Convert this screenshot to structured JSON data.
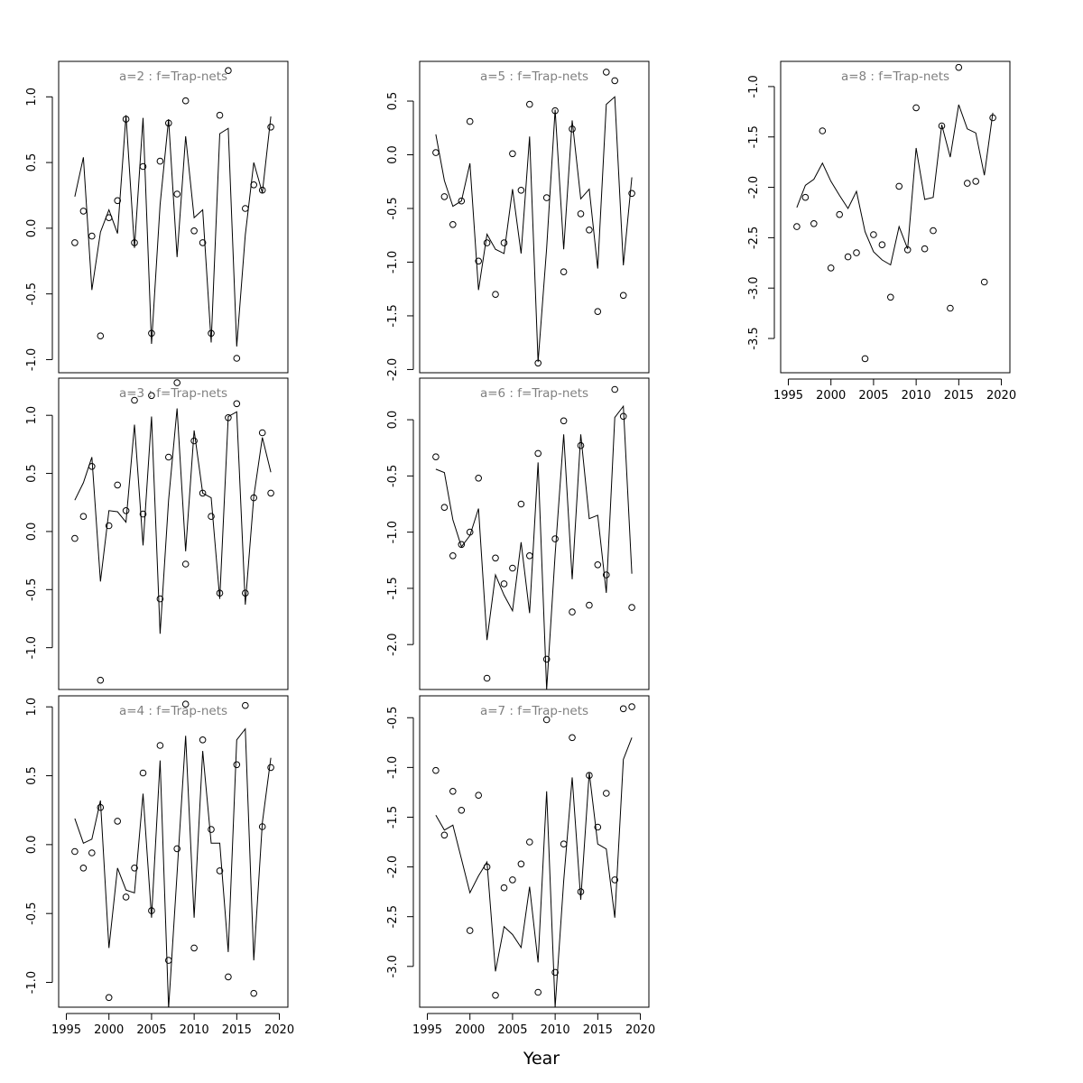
{
  "chart_data": {
    "type": "line",
    "xlabel": "Year",
    "line_color": "#000000",
    "title_color": "#808080",
    "x": [
      1996,
      1997,
      1998,
      1999,
      2000,
      2001,
      2002,
      2003,
      2004,
      2005,
      2006,
      2007,
      2008,
      2009,
      2010,
      2011,
      2012,
      2013,
      2014,
      2015,
      2016,
      2017,
      2018,
      2019
    ],
    "xlim": [
      1994.1,
      2021.0
    ],
    "xticks": [
      1995,
      2000,
      2005,
      2010,
      2015,
      2020
    ],
    "xtick_labels": [
      "1995",
      "2000",
      "2005",
      "2010",
      "2015",
      "2020"
    ],
    "panels": [
      {
        "title": "a=2  :  f=Trap-nets",
        "ylim": [
          -1.1,
          1.27
        ],
        "yticks": [
          -1.0,
          -0.5,
          0.0,
          0.5,
          1.0
        ],
        "ytick_labels": [
          "-1.0",
          "-0.5",
          "0.0",
          "0.5",
          "1.0"
        ],
        "show_x_axis": false,
        "observed": [
          -0.11,
          0.13,
          -0.06,
          -0.82,
          0.08,
          0.21,
          0.83,
          -0.11,
          0.47,
          -0.8,
          0.51,
          0.8,
          0.26,
          0.97,
          -0.02,
          -0.11,
          -0.8,
          0.86,
          1.2,
          -0.99,
          0.15,
          0.33,
          0.29,
          0.77
        ],
        "fitted": [
          0.24,
          0.54,
          -0.47,
          -0.03,
          0.14,
          -0.04,
          0.86,
          -0.15,
          0.84,
          -0.88,
          0.18,
          0.83,
          -0.22,
          0.7,
          0.08,
          0.14,
          -0.87,
          0.72,
          0.76,
          -0.9,
          -0.05,
          0.5,
          0.27,
          0.85
        ]
      },
      {
        "title": "a=3  :  f=Trap-nets",
        "ylim": [
          -1.36,
          1.32
        ],
        "yticks": [
          -1.0,
          -0.5,
          0.0,
          0.5,
          1.0
        ],
        "ytick_labels": [
          "-1.0",
          "-0.5",
          "0.0",
          "0.5",
          "1.0"
        ],
        "show_x_axis": false,
        "observed": [
          -0.06,
          0.13,
          0.56,
          -1.28,
          0.05,
          0.4,
          0.18,
          1.13,
          0.15,
          1.17,
          -0.58,
          0.64,
          1.28,
          -0.28,
          0.78,
          0.33,
          0.13,
          -0.53,
          0.98,
          1.1,
          -0.53,
          0.29,
          0.85,
          0.33
        ],
        "fitted": [
          0.27,
          0.42,
          0.64,
          -0.43,
          0.18,
          0.17,
          0.08,
          0.92,
          -0.12,
          0.99,
          -0.88,
          0.27,
          1.06,
          -0.17,
          0.87,
          0.33,
          0.29,
          -0.58,
          0.99,
          1.03,
          -0.63,
          0.3,
          0.81,
          0.51
        ]
      },
      {
        "title": "a=4  :  f=Trap-nets",
        "ylim": [
          -1.18,
          1.08
        ],
        "yticks": [
          -1.0,
          -0.5,
          0.0,
          0.5,
          1.0
        ],
        "ytick_labels": [
          "-1.0",
          "-0.5",
          "0.0",
          "0.5",
          "1.0"
        ],
        "show_x_axis": true,
        "observed": [
          -0.05,
          -0.17,
          -0.06,
          0.27,
          -1.11,
          0.17,
          -0.38,
          -0.17,
          0.52,
          -0.48,
          0.72,
          -0.84,
          -0.03,
          1.02,
          -0.75,
          0.76,
          0.11,
          -0.19,
          -0.96,
          0.58,
          1.01,
          -1.08,
          0.13,
          0.56
        ],
        "fitted": [
          0.19,
          0.01,
          0.04,
          0.32,
          -0.75,
          -0.17,
          -0.33,
          -0.35,
          0.37,
          -0.53,
          0.61,
          -1.19,
          -0.21,
          0.79,
          -0.53,
          0.68,
          0.01,
          0.01,
          -0.78,
          0.76,
          0.84,
          -0.84,
          0.16,
          0.63
        ]
      },
      {
        "title": "a=5  :  f=Trap-nets",
        "ylim": [
          -2.03,
          0.87
        ],
        "yticks": [
          -2.0,
          -1.5,
          -1.0,
          -0.5,
          0.0,
          0.5
        ],
        "ytick_labels": [
          "-2.0",
          "-1.5",
          "-1.0",
          "-0.5",
          "0.0",
          "0.5"
        ],
        "show_x_axis": false,
        "observed": [
          0.02,
          -0.39,
          -0.65,
          -0.43,
          0.31,
          -0.99,
          -0.82,
          -1.3,
          -0.82,
          0.01,
          -0.33,
          0.47,
          -1.94,
          -0.4,
          0.41,
          -1.09,
          0.24,
          -0.55,
          -0.7,
          -1.46,
          0.77,
          0.69,
          -1.31,
          -0.36
        ],
        "fitted": [
          0.19,
          -0.24,
          -0.48,
          -0.43,
          -0.08,
          -1.26,
          -0.74,
          -0.88,
          -0.92,
          -0.32,
          -0.92,
          0.17,
          -1.93,
          -0.87,
          0.42,
          -0.88,
          0.32,
          -0.41,
          -0.32,
          -1.06,
          0.47,
          0.54,
          -1.03,
          -0.21
        ]
      },
      {
        "title": "a=6  :  f=Trap-nets",
        "ylim": [
          -2.4,
          0.37
        ],
        "yticks": [
          -2.0,
          -1.5,
          -1.0,
          -0.5,
          0.0
        ],
        "ytick_labels": [
          "-2.0",
          "-1.5",
          "-1.0",
          "-0.5",
          "0.0"
        ],
        "show_x_axis": false,
        "observed": [
          -0.33,
          -0.78,
          -1.21,
          -1.11,
          -1.0,
          -0.52,
          -2.3,
          -1.23,
          -1.46,
          -1.32,
          -0.75,
          -1.21,
          -0.3,
          -2.13,
          -1.06,
          -0.01,
          -1.71,
          -0.23,
          -1.65,
          -1.29,
          -1.38,
          0.27,
          0.03,
          -1.67
        ],
        "fitted": [
          -0.44,
          -0.47,
          -0.89,
          -1.13,
          -1.03,
          -0.79,
          -1.96,
          -1.38,
          -1.56,
          -1.7,
          -1.09,
          -1.72,
          -0.38,
          -2.4,
          -1.2,
          -0.13,
          -1.42,
          -0.13,
          -0.88,
          -0.85,
          -1.54,
          0.02,
          0.12,
          -1.37
        ]
      },
      {
        "title": "a=7  :  f=Trap-nets",
        "ylim": [
          -3.41,
          -0.28
        ],
        "yticks": [
          -3.0,
          -2.5,
          -2.0,
          -1.5,
          -1.0,
          -0.5
        ],
        "ytick_labels": [
          "-3.0",
          "-2.5",
          "-2.0",
          "-1.5",
          "-1.0",
          "-0.5"
        ],
        "show_x_axis": true,
        "observed": [
          -1.03,
          -1.68,
          -1.24,
          -1.43,
          -2.64,
          -1.28,
          -2.0,
          -3.29,
          -2.21,
          -2.13,
          -1.97,
          -1.75,
          -3.26,
          -0.52,
          -3.06,
          -1.77,
          -0.7,
          -2.25,
          -1.08,
          -1.6,
          -1.26,
          -2.13,
          -0.41,
          -0.39
        ],
        "fitted": [
          -1.48,
          -1.63,
          -1.58,
          -1.92,
          -2.26,
          -2.09,
          -1.95,
          -3.05,
          -2.6,
          -2.68,
          -2.81,
          -2.2,
          -2.96,
          -1.24,
          -3.41,
          -2.14,
          -1.1,
          -2.33,
          -1.05,
          -1.77,
          -1.82,
          -2.51,
          -0.92,
          -0.7
        ]
      },
      {
        "title": "a=8  :  f=Trap-nets",
        "ylim": [
          -3.84,
          -0.75
        ],
        "yticks": [
          -3.5,
          -3.0,
          -2.5,
          -2.0,
          -1.5,
          -1.0
        ],
        "ytick_labels": [
          "-3.5",
          "-3.0",
          "-2.5",
          "-2.0",
          "-1.5",
          "-1.0"
        ],
        "show_x_axis": true,
        "observed": [
          -2.39,
          -2.1,
          -2.36,
          -1.44,
          -2.8,
          -2.27,
          -2.69,
          -2.65,
          -3.7,
          -2.47,
          -2.57,
          -3.09,
          -1.99,
          -2.62,
          -1.21,
          -2.61,
          -2.43,
          -1.39,
          -3.2,
          -0.81,
          -1.96,
          -1.94,
          -2.94,
          -1.31
        ],
        "fitted": [
          -2.2,
          -1.98,
          -1.92,
          -1.76,
          -1.94,
          -2.08,
          -2.21,
          -2.04,
          -2.44,
          -2.64,
          -2.72,
          -2.77,
          -2.39,
          -2.61,
          -1.61,
          -2.12,
          -2.1,
          -1.38,
          -1.7,
          -1.18,
          -1.42,
          -1.46,
          -1.88,
          -1.26
        ]
      }
    ]
  }
}
